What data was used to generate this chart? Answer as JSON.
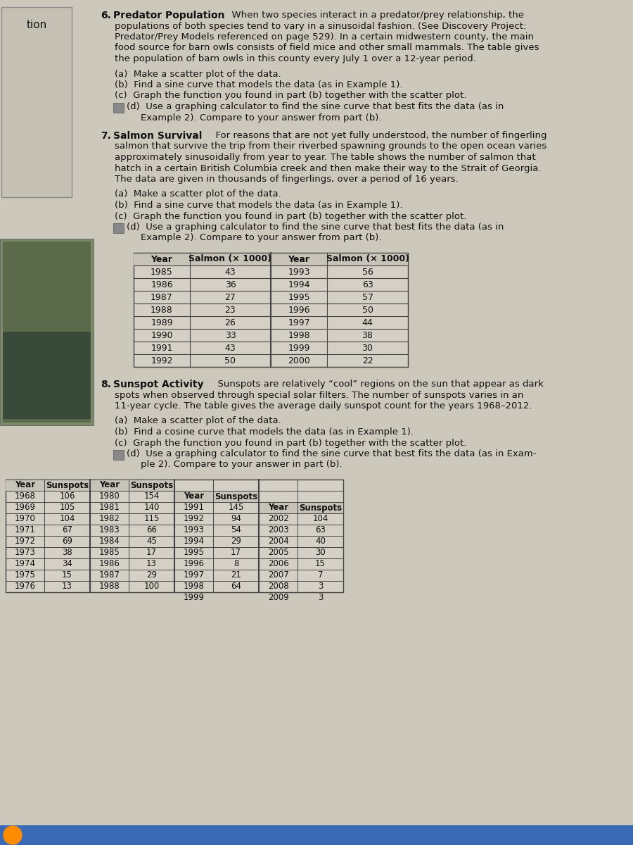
{
  "bg_color": "#cdc8bc",
  "text_color": "#111111",
  "left_box_color": "#c5c0b4",
  "table_bg": "#d5d0c5",
  "table_header_bg": "#c8c3b8",
  "salmon_table": {
    "col1_years": [
      "1985",
      "1986",
      "1987",
      "1988",
      "1989",
      "1990",
      "1991",
      "1992"
    ],
    "col1_values": [
      "43",
      "36",
      "27",
      "23",
      "26",
      "33",
      "43",
      "50"
    ],
    "col2_years": [
      "1993",
      "1994",
      "1995",
      "1996",
      "1997",
      "1998",
      "1999",
      "2000"
    ],
    "col2_values": [
      "56",
      "63",
      "57",
      "50",
      "44",
      "38",
      "30",
      "22"
    ]
  },
  "sunspot_table": {
    "col1_years": [
      "1968",
      "1969",
      "1970",
      "1971",
      "1972",
      "1973",
      "1974",
      "1975",
      "1976"
    ],
    "col1_values": [
      "106",
      "105",
      "104",
      "67",
      "69",
      "38",
      "34",
      "15",
      "13"
    ],
    "col2_years": [
      "1980",
      "1981",
      "1982",
      "1983",
      "1984",
      "1985",
      "1986",
      "1987",
      "1988"
    ],
    "col2_values": [
      "154",
      "140",
      "115",
      "66",
      "45",
      "17",
      "13",
      "29",
      "100"
    ],
    "col3_years": [
      "1991",
      "1992",
      "1993",
      "1994",
      "1995",
      "1996",
      "1997",
      "1998",
      "1999"
    ],
    "col3_values": [
      "145",
      "94",
      "54",
      "29",
      "17",
      "8",
      "21",
      "64",
      ""
    ],
    "col4_years": [
      "2002",
      "2003",
      "2004",
      "2005",
      "2006",
      "2007",
      "2008",
      "2009"
    ],
    "col4_values": [
      "104",
      "63",
      "40",
      "30",
      "15",
      "7",
      "3",
      "3"
    ]
  }
}
